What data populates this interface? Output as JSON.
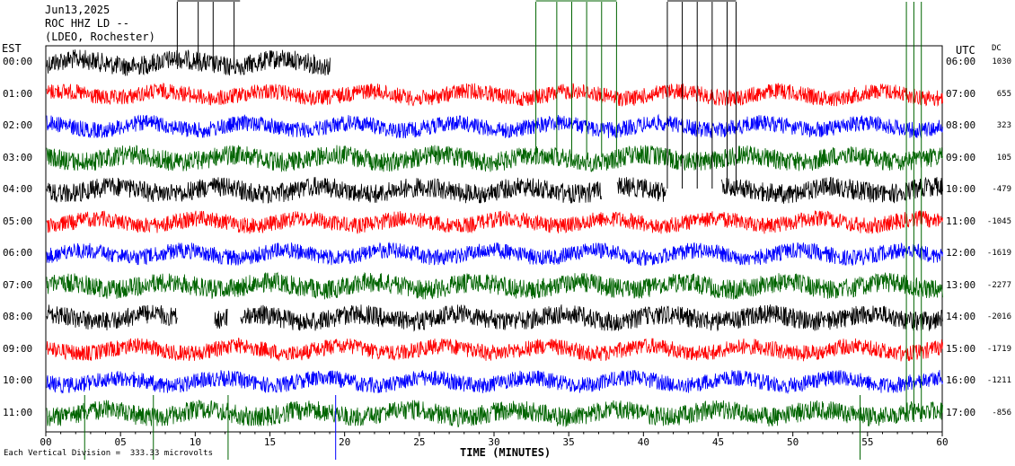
{
  "header": {
    "date": "Jun13,2025",
    "station": "ROC HHZ LD --",
    "network": "(LDEO, Rochester)"
  },
  "labels": {
    "left_zone": "EST",
    "right_zone": "UTC",
    "dc_heading": "DC",
    "x_axis": "TIME (MINUTES)",
    "scale_note": "Each Vertical Division =  333.33 microvolts"
  },
  "colors": {
    "black": "#000000",
    "red": "#ff0000",
    "blue": "#0000ff",
    "green": "#006400"
  },
  "chart_data": {
    "type": "line",
    "x_ticks": [
      "00",
      "05",
      "10",
      "15",
      "20",
      "25",
      "30",
      "35",
      "40",
      "45",
      "50",
      "55",
      "60"
    ],
    "x_range": [
      0,
      60
    ],
    "rows": [
      {
        "est": "00:00",
        "utc": "06:00",
        "dc": "1030",
        "color": "black",
        "end_minute": 19
      },
      {
        "est": "01:00",
        "utc": "07:00",
        "dc": "655",
        "color": "red"
      },
      {
        "est": "02:00",
        "utc": "08:00",
        "dc": "323",
        "color": "blue"
      },
      {
        "est": "03:00",
        "utc": "09:00",
        "dc": "105",
        "color": "green"
      },
      {
        "est": "04:00",
        "utc": "10:00",
        "dc": "-479",
        "color": "black",
        "gaps": [
          [
            37.2,
            38.2
          ],
          [
            41.5,
            45.2
          ]
        ]
      },
      {
        "est": "05:00",
        "utc": "11:00",
        "dc": "-1045",
        "color": "red"
      },
      {
        "est": "06:00",
        "utc": "12:00",
        "dc": "-1619",
        "color": "blue"
      },
      {
        "est": "07:00",
        "utc": "13:00",
        "dc": "-2277",
        "color": "green"
      },
      {
        "est": "08:00",
        "utc": "14:00",
        "dc": "-2016",
        "color": "black",
        "gaps": [
          [
            8.8,
            11.3
          ],
          [
            12.2,
            13.0
          ]
        ]
      },
      {
        "est": "09:00",
        "utc": "15:00",
        "dc": "-1719",
        "color": "red"
      },
      {
        "est": "10:00",
        "utc": "16:00",
        "dc": "-1211",
        "color": "blue"
      },
      {
        "est": "11:00",
        "utc": "17:00",
        "dc": "-856",
        "color": "green"
      }
    ]
  }
}
